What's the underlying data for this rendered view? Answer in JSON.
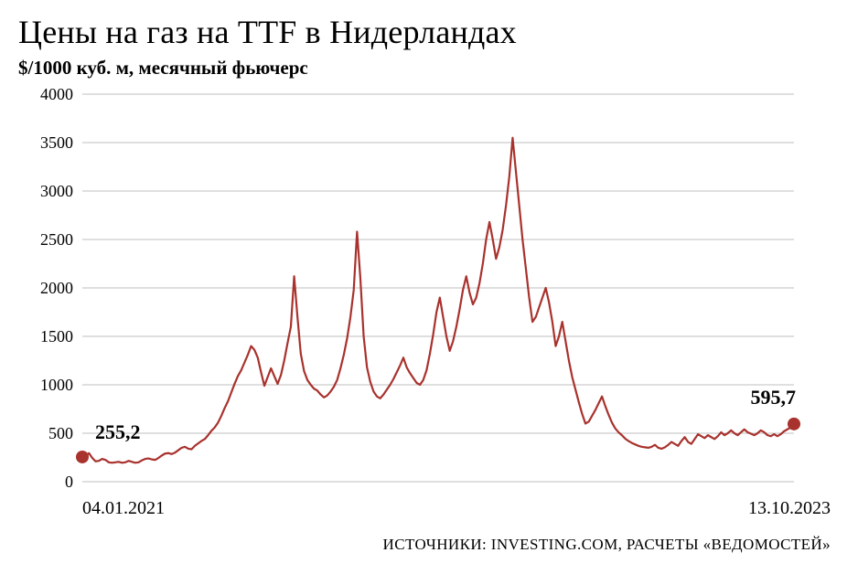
{
  "title": "Цены на газ на TTF в Нидерландах",
  "subtitle": "$/1000 куб. м, месячный фьючерс",
  "source": "ИСТОЧНИКИ: INVESTING.COM, РАСЧЕТЫ «ВЕДОМОСТЕЙ»",
  "chart": {
    "type": "line",
    "x_start_label": "04.01.2021",
    "x_end_label": "13.10.2023",
    "ylim": [
      0,
      4000
    ],
    "ytick_step": 500,
    "yticks": [
      0,
      500,
      1000,
      1500,
      2000,
      2500,
      3000,
      3500,
      4000
    ],
    "background_color": "#ffffff",
    "grid_color": "#bfbfbf",
    "grid_width": 1,
    "line_color": "#a8322d",
    "line_width": 2.2,
    "marker_color": "#a8322d",
    "marker_radius": 7,
    "start_callout": "255,2",
    "end_callout": "595,7",
    "title_fontsize": 36,
    "subtitle_fontsize": 21,
    "axis_label_fontsize": 20,
    "tick_fontsize": 18,
    "callout_fontsize": 22,
    "values": [
      255.2,
      265,
      295,
      245,
      210,
      215,
      235,
      225,
      200,
      195,
      200,
      205,
      195,
      200,
      215,
      205,
      195,
      200,
      220,
      235,
      240,
      230,
      225,
      245,
      270,
      290,
      295,
      285,
      300,
      325,
      350,
      360,
      340,
      335,
      370,
      395,
      420,
      440,
      480,
      525,
      560,
      610,
      680,
      760,
      830,
      920,
      1010,
      1090,
      1150,
      1230,
      1310,
      1400,
      1360,
      1280,
      1130,
      990,
      1080,
      1170,
      1090,
      1010,
      1100,
      1250,
      1430,
      1600,
      2120,
      1700,
      1320,
      1140,
      1050,
      1000,
      960,
      940,
      900,
      870,
      890,
      930,
      980,
      1050,
      1170,
      1310,
      1480,
      1700,
      1980,
      2580,
      2100,
      1500,
      1180,
      1030,
      930,
      880,
      860,
      900,
      950,
      1000,
      1060,
      1130,
      1200,
      1280,
      1180,
      1120,
      1070,
      1020,
      1000,
      1050,
      1150,
      1320,
      1520,
      1750,
      1900,
      1700,
      1500,
      1350,
      1450,
      1600,
      1780,
      1980,
      2120,
      1950,
      1830,
      1900,
      2050,
      2250,
      2500,
      2680,
      2500,
      2300,
      2420,
      2600,
      2850,
      3150,
      3550,
      3200,
      2850,
      2500,
      2200,
      1900,
      1650,
      1700,
      1800,
      1900,
      2000,
      1850,
      1650,
      1400,
      1500,
      1650,
      1450,
      1250,
      1080,
      950,
      820,
      700,
      600,
      620,
      680,
      740,
      810,
      880,
      780,
      690,
      610,
      550,
      510,
      480,
      445,
      420,
      400,
      385,
      370,
      360,
      355,
      350,
      360,
      380,
      350,
      340,
      355,
      380,
      410,
      390,
      370,
      420,
      460,
      410,
      390,
      440,
      490,
      470,
      450,
      480,
      460,
      440,
      470,
      510,
      480,
      500,
      530,
      500,
      480,
      510,
      540,
      510,
      495,
      480,
      500,
      530,
      510,
      480,
      470,
      490,
      470,
      490,
      520,
      540,
      560,
      595.7
    ]
  }
}
